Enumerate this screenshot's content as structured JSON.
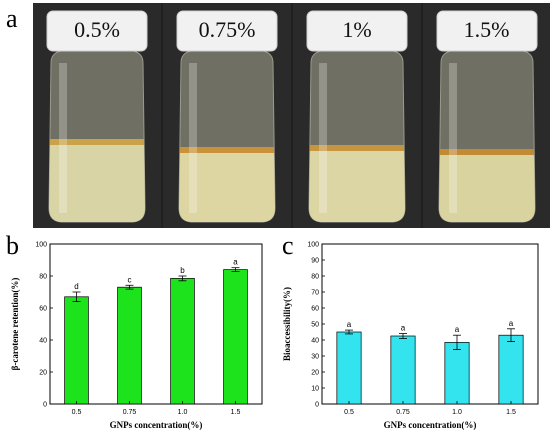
{
  "panels": {
    "a": "a",
    "b": "b",
    "c": "c"
  },
  "photo": {
    "jars": [
      {
        "label": "0.5%"
      },
      {
        "label": "0.75%"
      },
      {
        "label": "1%"
      },
      {
        "label": "1.5%"
      }
    ]
  },
  "chart_data": [
    {
      "type": "bar",
      "panel": "b",
      "categories": [
        "0.5",
        "0.75",
        "1.0",
        "1.5"
      ],
      "values": [
        67,
        73,
        78.5,
        84
      ],
      "errors": [
        3,
        1.2,
        1.5,
        1.2
      ],
      "significance": [
        "d",
        "c",
        "b",
        "a"
      ],
      "xlabel": "GNPs concentration(%)",
      "ylabel": "β-carotene retention(%)",
      "ylim": [
        0,
        100
      ],
      "yticks": [
        0,
        20,
        40,
        60,
        80,
        100
      ],
      "bar_color": "#1de31d",
      "grid": false
    },
    {
      "type": "bar",
      "panel": "c",
      "categories": [
        "0.5",
        "0.75",
        "1.0",
        "1.5"
      ],
      "values": [
        45,
        42.5,
        38.5,
        43
      ],
      "errors": [
        1.2,
        1.5,
        4.5,
        4
      ],
      "significance": [
        "a",
        "a",
        "a",
        "a"
      ],
      "xlabel": "GNPs concentration(%)",
      "ylabel": "Bioaccessibility(%)",
      "ylim": [
        0,
        100
      ],
      "yticks": [
        0,
        10,
        20,
        30,
        40,
        50,
        60,
        70,
        80,
        90,
        100
      ],
      "bar_color": "#33e4ee",
      "grid": false
    }
  ]
}
